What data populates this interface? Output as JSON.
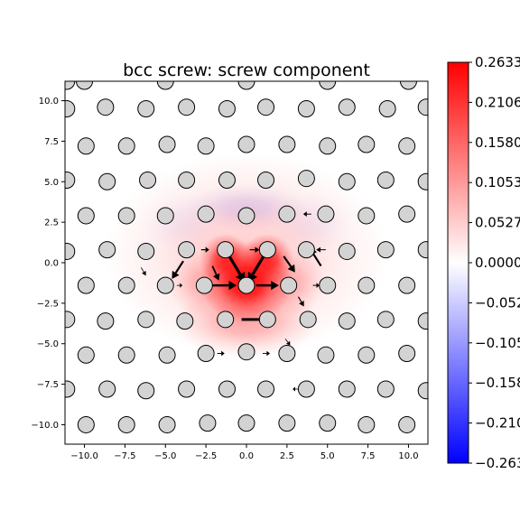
{
  "chart_data": {
    "type": "scatter",
    "title": "bcc screw: screw component",
    "xlim": [
      -11.2,
      11.2
    ],
    "ylim": [
      -11.2,
      11.2
    ],
    "x_ticks": [
      -10.0,
      -7.5,
      -5.0,
      -2.5,
      0.0,
      2.5,
      5.0,
      7.5,
      10.0
    ],
    "x_tick_labels": [
      "−10.0",
      "−7.5",
      "−5.0",
      "−2.5",
      "0.0",
      "2.5",
      "5.0",
      "7.5",
      "10.0"
    ],
    "y_ticks": [
      10.0,
      7.5,
      5.0,
      2.5,
      0.0,
      -2.5,
      -5.0,
      -7.5,
      -10.0
    ],
    "y_tick_labels": [
      "10.0",
      "7.5",
      "5.0",
      "2.5",
      "0.0",
      "−2.5",
      "−5.0",
      "−7.5",
      "−10.0"
    ],
    "colorbar": {
      "colormap": "bwr",
      "range": [
        -0.2633,
        0.2633
      ],
      "tick_values": [
        0.2633,
        0.2106,
        0.158,
        0.1053,
        0.0527,
        0.0,
        -0.0527,
        -0.1053,
        -0.158,
        -0.2106,
        -0.2633
      ],
      "tick_labels": [
        "0.2633",
        "0.2106",
        "0.1580",
        "0.1053",
        "0.0527",
        "0.0000",
        "−0.0527",
        "−0.1053",
        "−0.1580",
        "−0.2106",
        "−0.2633"
      ]
    },
    "colors": {
      "positive": "#ff0000",
      "zero": "#ffffff",
      "negative": "#0000ff",
      "atom_fill": "#d3d3d3"
    },
    "field_peaks": [
      {
        "x": 0.0,
        "y": -1.2,
        "value": 0.2633,
        "spread_x": 1.8,
        "spread_y": 1.6
      },
      {
        "x": -1.3,
        "y": 0.2,
        "value": 0.2,
        "spread_x": 1.0,
        "spread_y": 1.0
      },
      {
        "x": 1.3,
        "y": 0.2,
        "value": 0.2,
        "spread_x": 1.0,
        "spread_y": 1.0
      },
      {
        "x": 0.0,
        "y": -3.6,
        "value": 0.08,
        "spread_x": 2.8,
        "spread_y": 1.4
      },
      {
        "x": -2.6,
        "y": -1.3,
        "value": 0.06,
        "spread_x": 1.4,
        "spread_y": 1.3
      },
      {
        "x": 2.6,
        "y": -1.3,
        "value": 0.06,
        "spread_x": 1.4,
        "spread_y": 1.3
      },
      {
        "x": 0.0,
        "y": 0.5,
        "value": 0.05,
        "spread_x": 5.5,
        "spread_y": 4.0
      },
      {
        "x": 0.0,
        "y": 3.4,
        "value": -0.03,
        "spread_x": 2.4,
        "spread_y": 0.9
      },
      {
        "x": -4.0,
        "y": 2.5,
        "value": -0.012,
        "spread_x": 1.6,
        "spread_y": 1.2
      },
      {
        "x": 4.0,
        "y": 2.5,
        "value": -0.012,
        "spread_x": 1.6,
        "spread_y": 1.2
      }
    ],
    "atoms": [
      {
        "x": -11.1,
        "y": 11.2
      },
      {
        "x": -10.0,
        "y": 11.2
      },
      {
        "x": -5.0,
        "y": 11.2
      },
      {
        "x": 0.0,
        "y": 11.2
      },
      {
        "x": 5.0,
        "y": 11.2
      },
      {
        "x": 10.0,
        "y": 11.2
      },
      {
        "x": -11.1,
        "y": 9.5
      },
      {
        "x": -8.7,
        "y": 9.6
      },
      {
        "x": -6.2,
        "y": 9.5
      },
      {
        "x": -3.7,
        "y": 9.6
      },
      {
        "x": -1.2,
        "y": 9.5
      },
      {
        "x": 1.2,
        "y": 9.6
      },
      {
        "x": 3.7,
        "y": 9.5
      },
      {
        "x": 6.2,
        "y": 9.6
      },
      {
        "x": 8.7,
        "y": 9.5
      },
      {
        "x": 11.1,
        "y": 9.6
      },
      {
        "x": -9.9,
        "y": 7.2
      },
      {
        "x": -7.4,
        "y": 7.2
      },
      {
        "x": -4.9,
        "y": 7.3
      },
      {
        "x": -2.5,
        "y": 7.2
      },
      {
        "x": 0.0,
        "y": 7.3
      },
      {
        "x": 2.5,
        "y": 7.3
      },
      {
        "x": 5.0,
        "y": 7.2
      },
      {
        "x": 7.4,
        "y": 7.3
      },
      {
        "x": 9.9,
        "y": 7.2
      },
      {
        "x": -11.1,
        "y": 5.1
      },
      {
        "x": -8.6,
        "y": 5.0
      },
      {
        "x": -6.1,
        "y": 5.1
      },
      {
        "x": -3.7,
        "y": 5.1
      },
      {
        "x": -1.2,
        "y": 5.1
      },
      {
        "x": 1.2,
        "y": 5.1
      },
      {
        "x": 3.7,
        "y": 5.2
      },
      {
        "x": 6.2,
        "y": 5.0
      },
      {
        "x": 8.6,
        "y": 5.1
      },
      {
        "x": 11.1,
        "y": 5.0
      },
      {
        "x": -9.9,
        "y": 2.9
      },
      {
        "x": -7.4,
        "y": 2.9
      },
      {
        "x": -5.0,
        "y": 2.9
      },
      {
        "x": -2.5,
        "y": 3.0
      },
      {
        "x": 0.0,
        "y": 2.9
      },
      {
        "x": 2.5,
        "y": 3.0
      },
      {
        "x": 4.9,
        "y": 3.0
      },
      {
        "x": 7.4,
        "y": 2.9
      },
      {
        "x": 9.9,
        "y": 3.0
      },
      {
        "x": -11.1,
        "y": 0.7
      },
      {
        "x": -8.6,
        "y": 0.8
      },
      {
        "x": -6.2,
        "y": 0.7
      },
      {
        "x": -3.7,
        "y": 0.8
      },
      {
        "x": -1.3,
        "y": 0.8
      },
      {
        "x": 1.3,
        "y": 0.8
      },
      {
        "x": 3.7,
        "y": 0.8
      },
      {
        "x": 6.2,
        "y": 0.7
      },
      {
        "x": 8.6,
        "y": 0.8
      },
      {
        "x": 11.1,
        "y": 0.8
      },
      {
        "x": -9.9,
        "y": -1.4
      },
      {
        "x": -7.4,
        "y": -1.4
      },
      {
        "x": -5.0,
        "y": -1.4
      },
      {
        "x": -2.6,
        "y": -1.4
      },
      {
        "x": 0.0,
        "y": -1.4
      },
      {
        "x": 2.6,
        "y": -1.4
      },
      {
        "x": 5.0,
        "y": -1.4
      },
      {
        "x": 7.4,
        "y": -1.4
      },
      {
        "x": 9.9,
        "y": -1.4
      },
      {
        "x": -11.1,
        "y": -3.5
      },
      {
        "x": -8.7,
        "y": -3.6
      },
      {
        "x": -6.2,
        "y": -3.5
      },
      {
        "x": -3.8,
        "y": -3.6
      },
      {
        "x": -1.3,
        "y": -3.5
      },
      {
        "x": 1.3,
        "y": -3.5
      },
      {
        "x": 3.8,
        "y": -3.5
      },
      {
        "x": 6.2,
        "y": -3.6
      },
      {
        "x": 8.6,
        "y": -3.5
      },
      {
        "x": 11.1,
        "y": -3.6
      },
      {
        "x": -9.9,
        "y": -5.7
      },
      {
        "x": -7.4,
        "y": -5.7
      },
      {
        "x": -4.9,
        "y": -5.7
      },
      {
        "x": -2.5,
        "y": -5.6
      },
      {
        "x": 0.0,
        "y": -5.5
      },
      {
        "x": 2.5,
        "y": -5.6
      },
      {
        "x": 4.9,
        "y": -5.7
      },
      {
        "x": 7.4,
        "y": -5.7
      },
      {
        "x": 9.9,
        "y": -5.6
      },
      {
        "x": -11.1,
        "y": -7.8
      },
      {
        "x": -8.6,
        "y": -7.8
      },
      {
        "x": -6.2,
        "y": -7.9
      },
      {
        "x": -3.7,
        "y": -7.8
      },
      {
        "x": -1.2,
        "y": -7.8
      },
      {
        "x": 1.2,
        "y": -7.8
      },
      {
        "x": 3.7,
        "y": -7.8
      },
      {
        "x": 6.2,
        "y": -7.8
      },
      {
        "x": 8.6,
        "y": -7.8
      },
      {
        "x": 11.1,
        "y": -7.9
      },
      {
        "x": -9.9,
        "y": -10.0
      },
      {
        "x": -7.4,
        "y": -10.0
      },
      {
        "x": -4.9,
        "y": -10.0
      },
      {
        "x": -2.4,
        "y": -9.9
      },
      {
        "x": 0.0,
        "y": -9.9
      },
      {
        "x": 2.5,
        "y": -9.9
      },
      {
        "x": 5.0,
        "y": -9.9
      },
      {
        "x": 7.4,
        "y": -10.0
      },
      {
        "x": 9.9,
        "y": -10.0
      }
    ],
    "arrows": [
      {
        "x": -1.3,
        "y": 0.8,
        "dx": 1.2,
        "dy": -2.0,
        "weight": 3.2
      },
      {
        "x": 1.3,
        "y": 0.8,
        "dx": -1.2,
        "dy": -2.0,
        "weight": 3.2
      },
      {
        "x": -0.3,
        "y": -3.5,
        "dx": 1.8,
        "dy": 0.0,
        "weight": 3.0
      },
      {
        "x": -2.1,
        "y": -1.4,
        "dx": 1.5,
        "dy": 0.0,
        "weight": 2.6
      },
      {
        "x": 0.6,
        "y": -1.4,
        "dx": 1.4,
        "dy": 0.0,
        "weight": 2.6
      },
      {
        "x": -3.9,
        "y": 0.1,
        "dx": -0.7,
        "dy": -1.1,
        "weight": 2.2
      },
      {
        "x": 4.6,
        "y": -0.2,
        "dx": -0.7,
        "dy": 1.1,
        "weight": 2.2
      },
      {
        "x": 2.3,
        "y": 0.4,
        "dx": 0.7,
        "dy": -1.0,
        "weight": 2.2
      },
      {
        "x": -2.1,
        "y": -0.2,
        "dx": 0.4,
        "dy": -0.9,
        "weight": 1.8
      },
      {
        "x": 3.2,
        "y": -2.1,
        "dx": 0.35,
        "dy": -0.6,
        "weight": 1.2
      },
      {
        "x": -2.8,
        "y": 0.8,
        "dx": 0.5,
        "dy": 0.0,
        "weight": 1.2
      },
      {
        "x": 0.2,
        "y": 0.8,
        "dx": 0.6,
        "dy": 0.0,
        "weight": 1.2
      },
      {
        "x": 4.1,
        "y": -1.4,
        "dx": 0.4,
        "dy": 0.0,
        "weight": 1.0
      },
      {
        "x": 4.9,
        "y": 0.8,
        "dx": -0.6,
        "dy": 0.0,
        "weight": 1.0
      },
      {
        "x": 4.0,
        "y": 3.0,
        "dx": -0.5,
        "dy": 0.0,
        "weight": 1.0
      },
      {
        "x": -1.8,
        "y": -5.6,
        "dx": 0.45,
        "dy": 0.0,
        "weight": 1.0
      },
      {
        "x": 1.0,
        "y": -5.6,
        "dx": 0.45,
        "dy": 0.0,
        "weight": 0.9
      },
      {
        "x": -6.5,
        "y": -0.3,
        "dx": 0.3,
        "dy": -0.5,
        "weight": 0.8
      },
      {
        "x": -4.3,
        "y": -1.4,
        "dx": 0.35,
        "dy": 0.0,
        "weight": 0.8
      },
      {
        "x": 2.4,
        "y": -4.7,
        "dx": 0.3,
        "dy": -0.4,
        "weight": 0.8
      },
      {
        "x": 3.2,
        "y": -7.8,
        "dx": -0.35,
        "dy": 0.0,
        "weight": 0.8
      }
    ]
  }
}
